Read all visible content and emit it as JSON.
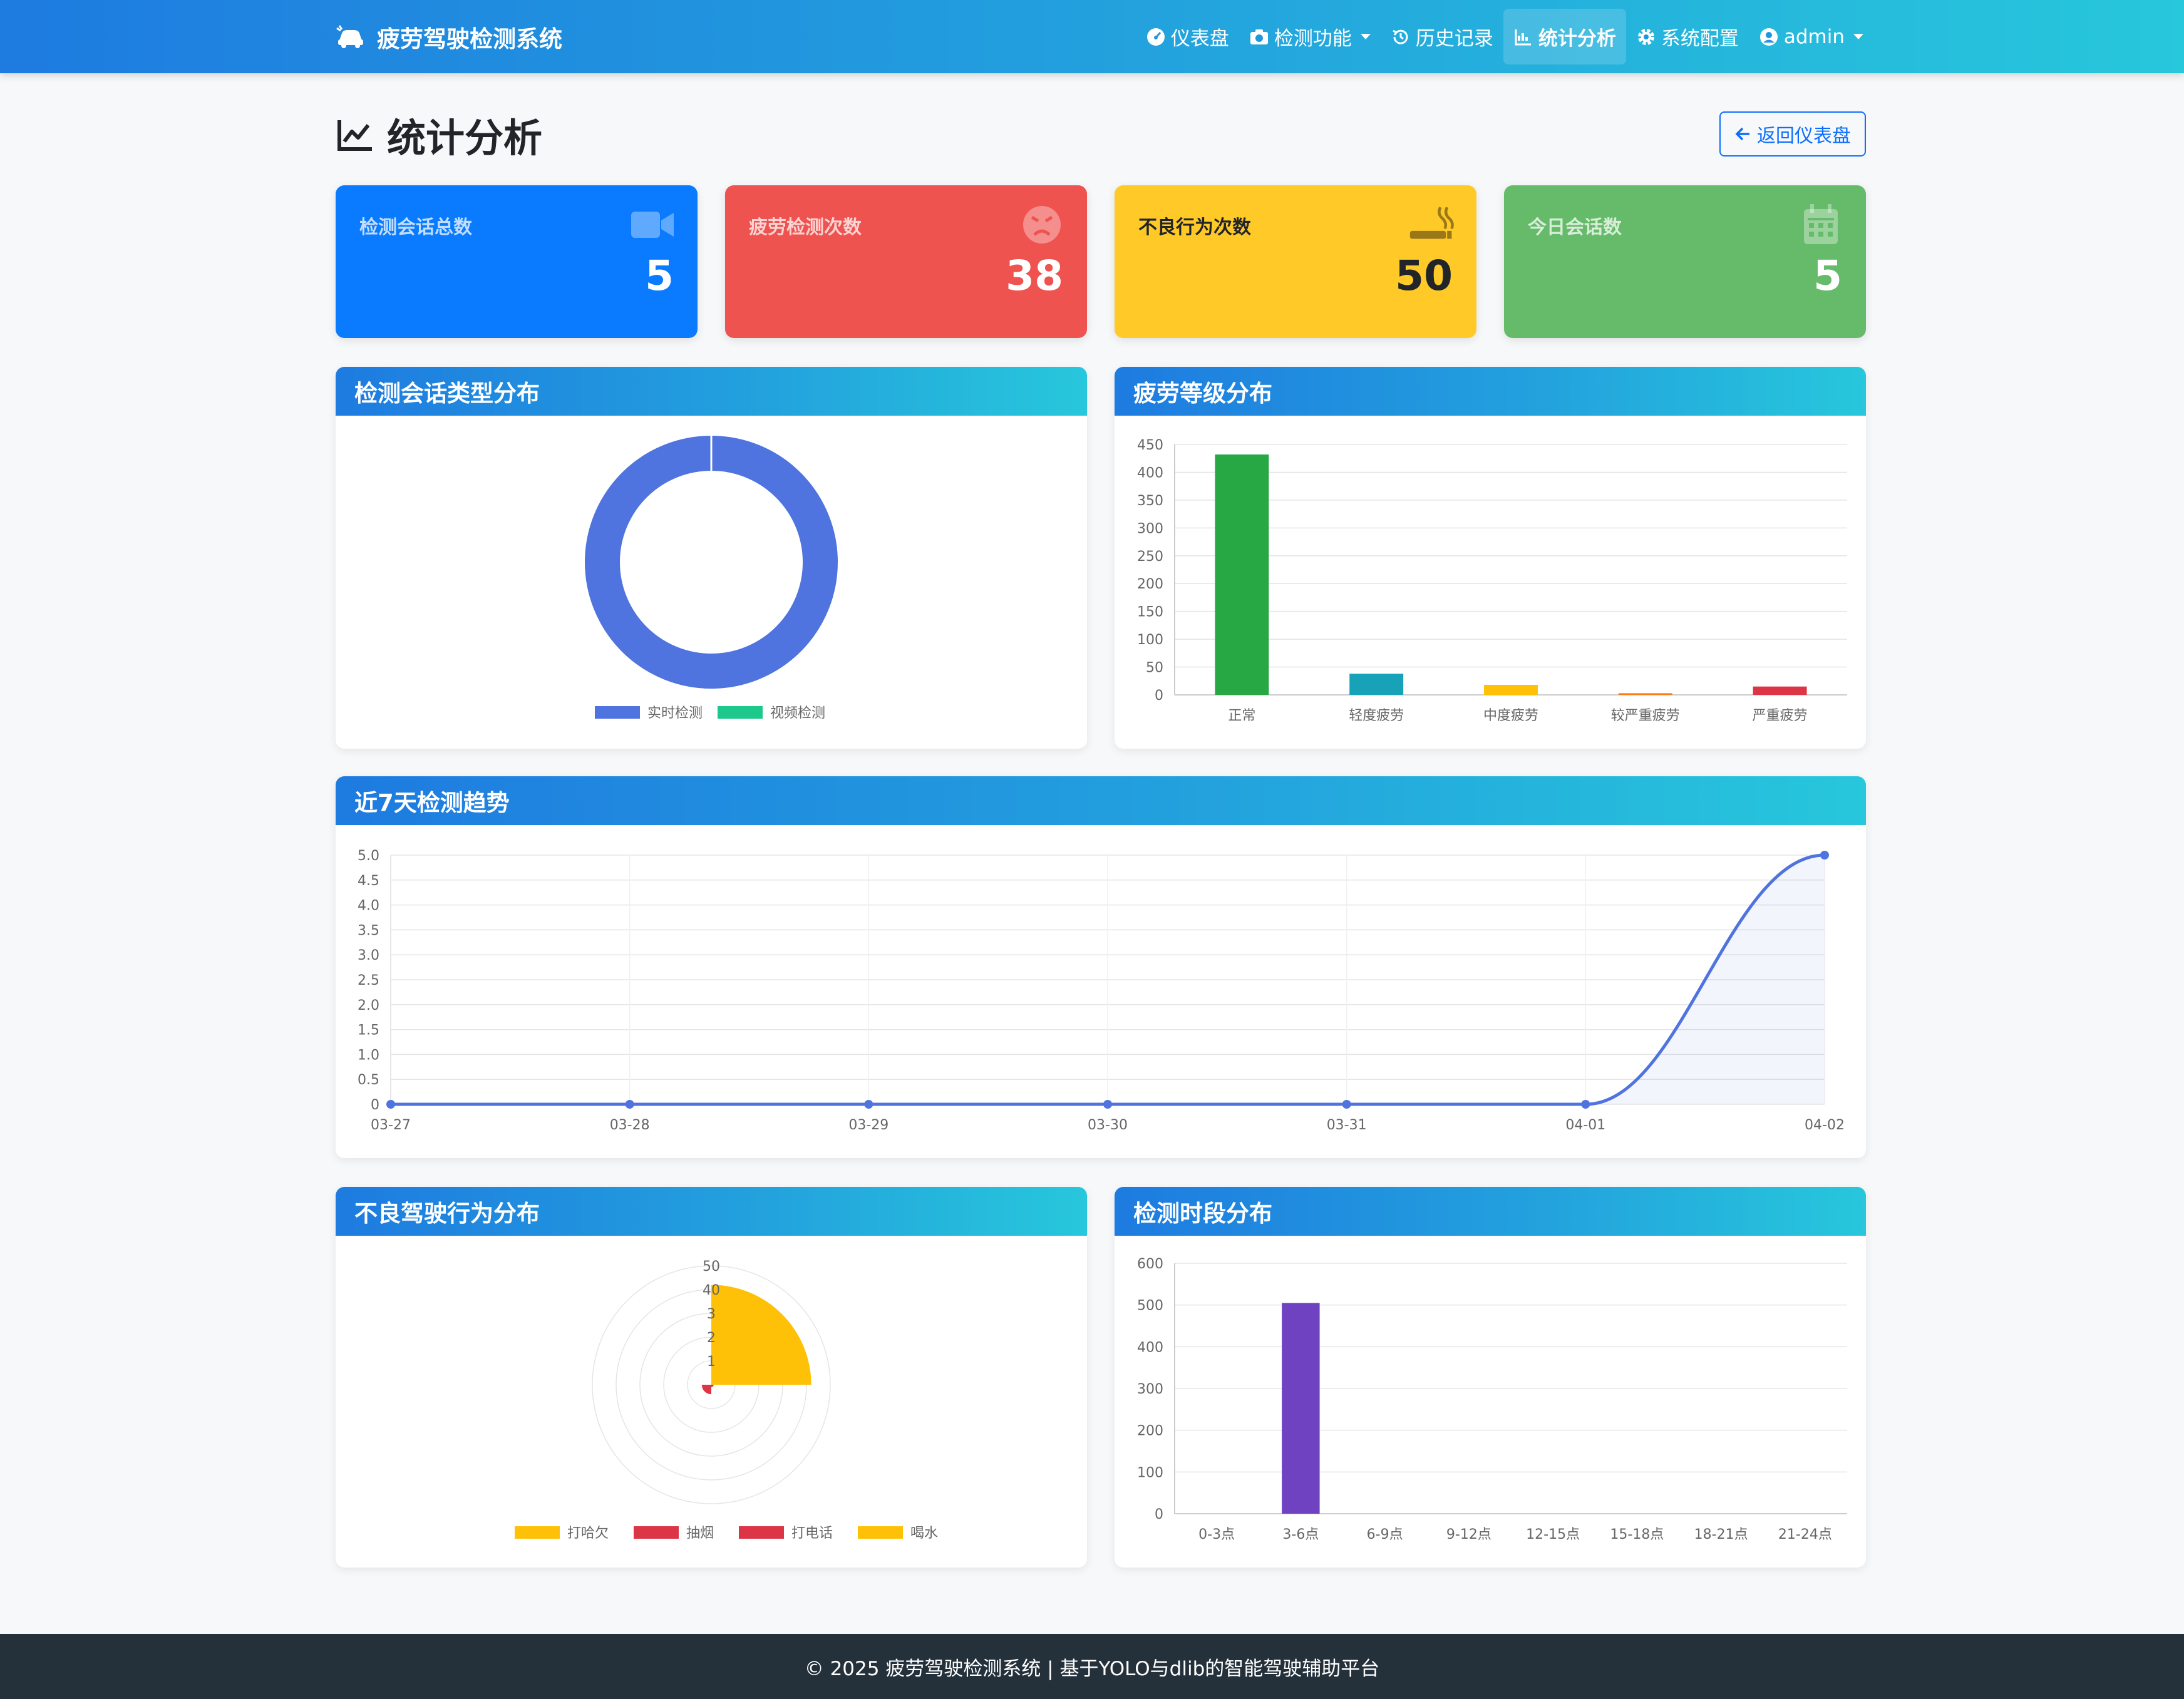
{
  "navbar": {
    "brand": "疲劳驾驶检测系统",
    "items": [
      {
        "label": "仪表盘",
        "icon": "gauge-icon"
      },
      {
        "label": "检测功能",
        "icon": "camera-icon",
        "dropdown": true
      },
      {
        "label": "历史记录",
        "icon": "history-icon"
      },
      {
        "label": "统计分析",
        "icon": "chart-icon",
        "active": true
      },
      {
        "label": "系统配置",
        "icon": "gear-icon"
      },
      {
        "label": "admin",
        "icon": "user-circle-icon",
        "dropdown": true
      }
    ]
  },
  "header": {
    "title": "统计分析",
    "back_label": "返回仪表盘"
  },
  "stats": [
    {
      "label": "检测会话总数",
      "value": "5",
      "color": "#0a7bff",
      "icon": "video-icon"
    },
    {
      "label": "疲劳检测次数",
      "value": "38",
      "color": "#ef5350",
      "icon": "angry-face-icon"
    },
    {
      "label": "不良行为次数",
      "value": "50",
      "color": "#ffc928",
      "icon": "smoking-icon"
    },
    {
      "label": "今日会话数",
      "value": "5",
      "color": "#66bb6a",
      "icon": "calendar-icon"
    }
  ],
  "panels": {
    "session_type": "检测会话类型分布",
    "fatigue_level": "疲劳等级分布",
    "trend": "近7天检测趋势",
    "behavior": "不良驾驶行为分布",
    "timeslot": "检测时段分布"
  },
  "chart_data": [
    {
      "id": "session_type",
      "type": "pie",
      "labels": [
        "实时检测",
        "视频检测"
      ],
      "values": [
        5,
        0
      ],
      "colors": [
        "#4f73df",
        "#1cc88a"
      ]
    },
    {
      "id": "fatigue_level",
      "type": "bar",
      "categories": [
        "正常",
        "轻度疲劳",
        "中度疲劳",
        "较严重疲劳",
        "严重疲劳"
      ],
      "values": [
        432,
        38,
        18,
        3,
        15
      ],
      "colors": [
        "#28a745",
        "#17a2b8",
        "#ffc107",
        "#fd7e14",
        "#dc3545"
      ],
      "ylim": [
        0,
        450
      ],
      "yticks": [
        0,
        50,
        100,
        150,
        200,
        250,
        300,
        350,
        400,
        450
      ]
    },
    {
      "id": "trend",
      "type": "line",
      "x": [
        "03-27",
        "03-28",
        "03-29",
        "03-30",
        "03-31",
        "04-01",
        "04-02"
      ],
      "values": [
        0,
        0,
        0,
        0,
        0,
        0,
        5
      ],
      "color": "#4f73df",
      "ylim": [
        0,
        5
      ],
      "yticks": [
        "0",
        "0.5",
        "1.0",
        "1.5",
        "2.0",
        "2.5",
        "3.0",
        "3.5",
        "4.0",
        "4.5",
        "5.0"
      ]
    },
    {
      "id": "behavior",
      "type": "polar-area",
      "labels": [
        "打哈欠",
        "抽烟",
        "打电话",
        "喝水"
      ],
      "values": [
        42,
        1,
        4,
        0
      ],
      "colors": [
        "#ffc107",
        "#dc3545",
        "#dc3545",
        "#ffc107"
      ],
      "rlim": [
        0,
        50
      ],
      "rticks": [
        "1",
        "2",
        "3",
        "40",
        "50"
      ]
    },
    {
      "id": "timeslot",
      "type": "bar",
      "categories": [
        "0-3点",
        "3-6点",
        "6-9点",
        "9-12点",
        "12-15点",
        "15-18点",
        "18-21点",
        "21-24点"
      ],
      "values": [
        0,
        505,
        0,
        0,
        0,
        0,
        0,
        0
      ],
      "color": "#6f42c1",
      "ylim": [
        0,
        600
      ],
      "yticks": [
        0,
        100,
        200,
        300,
        400,
        500,
        600
      ]
    }
  ],
  "footer": "© 2025 疲劳驾驶检测系统 | 基于YOLO与dlib的智能驾驶辅助平台"
}
